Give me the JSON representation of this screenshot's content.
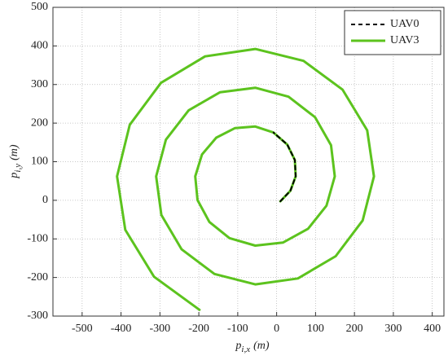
{
  "chart_data": {
    "type": "line",
    "xlabel": {
      "base": "p",
      "sub": "i,x",
      "unit": "(m)"
    },
    "ylabel": {
      "base": "p",
      "sub": "i,y",
      "unit": "(m)"
    },
    "xlim": [
      -575,
      430
    ],
    "xticks": [
      -500,
      -400,
      -300,
      -200,
      -100,
      0,
      100,
      200,
      300,
      400
    ],
    "ylim": [
      -300,
      500
    ],
    "yticks": [
      -300,
      -200,
      -100,
      0,
      100,
      200,
      300,
      400,
      500
    ],
    "grid": true,
    "legend": "northeast",
    "series": [
      {
        "name": "UAV0",
        "color": "#000000",
        "linestyle": "dashed",
        "x": [
          9.6,
          35.3,
          49,
          46.9,
          27.4,
          -8
        ],
        "values": [
          -2.6,
          24.6,
          62,
          104.2,
          144.4,
          175.5
        ]
      },
      {
        "name": "UAV3",
        "color": "#5cc31e",
        "linestyle": "solid",
        "x": [
          9.6,
          35.3,
          49,
          46.9,
          27.4,
          -8,
          -55,
          -106.9,
          -155.2,
          -191.8,
          -209.3,
          -203.3,
          -172.9,
          -121.3,
          -55,
          16.1,
          80.7,
          128.1,
          149.5,
          139.8,
          98.5,
          30.6,
          -55,
          -145.3,
          -226.2,
          -284.6,
          -309.8,
          -296.3,
          -244.1,
          -159.8,
          -55,
          54.6,
          151.8,
          221.1,
          250.1,
          232.7,
          169.5,
          69.1,
          -55,
          -183.9,
          -297.4,
          -377.5,
          -410.3,
          -389.1,
          -315.1,
          -198.3
        ],
        "values": [
          -2.6,
          24.6,
          62,
          104.2,
          144.4,
          175.5,
          191.1,
          187.1,
          162.2,
          118.7,
          62,
          0.5,
          -55.9,
          -97.9,
          -117.4,
          -109.6,
          -73.7,
          -13.9,
          62,
          142.7,
          215.5,
          268.4,
          291.7,
          280,
          233.2,
          157.2,
          62,
          -38,
          -127.1,
          -190.8,
          -217.9,
          -202.5,
          -144.8,
          -52.4,
          62,
          181.3,
          286.5,
          361.3,
          392.2,
          372.9,
          304.4,
          195.7,
          62,
          -76.5,
          -198.1,
          -283.8
        ]
      }
    ]
  }
}
